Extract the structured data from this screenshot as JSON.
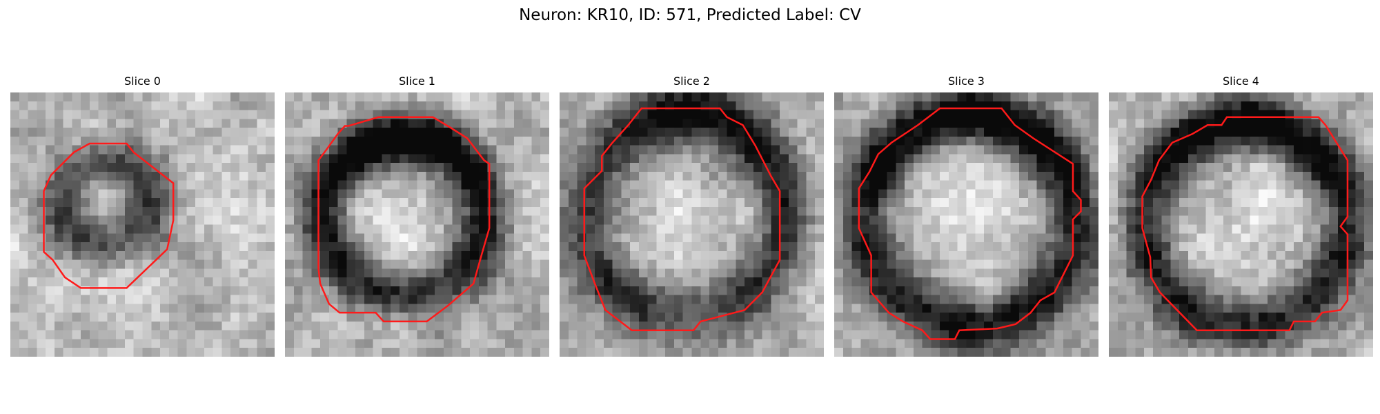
{
  "figure": {
    "title": "Neuron: KR10, ID: 571, Predicted Label: CV",
    "contour_color": "#ff1a1a",
    "colormap": "gray"
  },
  "panels": [
    {
      "title": "Slice 0"
    },
    {
      "title": "Slice 1"
    },
    {
      "title": "Slice 2"
    },
    {
      "title": "Slice 3"
    },
    {
      "title": "Slice 4"
    }
  ]
}
